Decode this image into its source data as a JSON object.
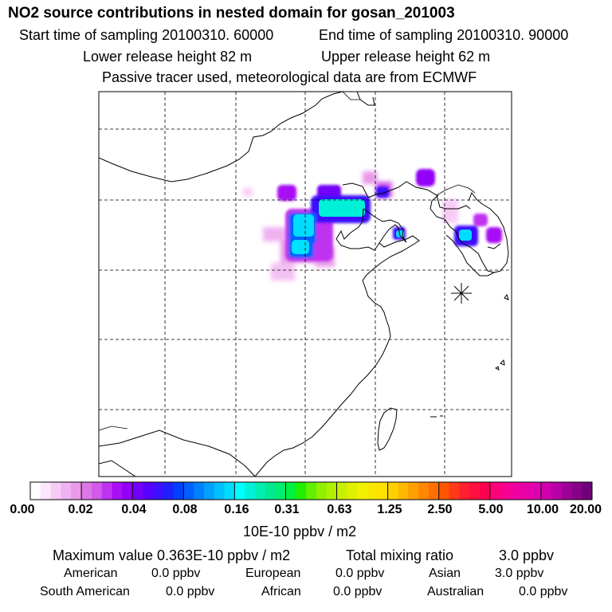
{
  "header": {
    "title": "NO2 source contributions in nested domain for gosan_201003",
    "start_time": "Start time of sampling 20100310. 60000",
    "end_time": "End time of sampling 20100310. 90000",
    "lower_height": "Lower release height   82 m",
    "upper_height": "Upper release height   62 m",
    "tracer_note": "Passive tracer used, meteorological data are from ECMWF"
  },
  "colorbar": {
    "labels": [
      "0.00",
      "0.02",
      "0.04",
      "0.08",
      "0.16",
      "0.31",
      "0.63",
      "1.25",
      "2.50",
      "5.00",
      "10.00",
      "20.00"
    ],
    "units": "10E-10 ppbv / m2",
    "colors": [
      [
        "#ffffff",
        "#fbe6fb",
        "#f6ccf6",
        "#f0b2f0",
        "#e89ae8"
      ],
      [
        "#dd77e8",
        "#d15ae8",
        "#bf33f0",
        "#a910f5",
        "#9400f7"
      ],
      [
        "#7300f7",
        "#5a00ff",
        "#3d10ff",
        "#2020ff",
        "#0040ff"
      ],
      [
        "#0060ff",
        "#0080ff",
        "#00a0ff",
        "#00c0ff",
        "#00dcff"
      ],
      [
        "#00ffff",
        "#00f0d8",
        "#00eeb0",
        "#00e890",
        "#00ee70"
      ],
      [
        "#00f040",
        "#20f000",
        "#60f000",
        "#90f000",
        "#b0f000"
      ],
      [
        "#c8f000",
        "#e0f000",
        "#f0f000",
        "#f8e800",
        "#ffe000"
      ],
      [
        "#ffd000",
        "#ffb800",
        "#ffa000",
        "#ff8800",
        "#ff7000"
      ],
      [
        "#ff5500",
        "#ff3a1a",
        "#ff2030",
        "#ff1040",
        "#ff0050"
      ],
      [
        "#ff0078",
        "#f80090",
        "#f000a0",
        "#e800a8",
        "#e000b0"
      ],
      [
        "#d000b0",
        "#b800a8",
        "#a00098",
        "#880088",
        "#700078"
      ]
    ]
  },
  "stats": {
    "maximum": "Maximum value  0.363E-10 ppbv / m2",
    "total": "Total mixing ratio",
    "total_value": "3.0 ppbv"
  },
  "regions": [
    {
      "name": "American",
      "value": "0.0 ppbv"
    },
    {
      "name": "European",
      "value": "0.0 ppbv"
    },
    {
      "name": "Asian",
      "value": "3.0 ppbv"
    },
    {
      "name": "South American",
      "value": "0.0 ppbv"
    },
    {
      "name": "African",
      "value": "0.0 ppbv"
    },
    {
      "name": "Australian",
      "value": "0.0 ppbv"
    }
  ],
  "map": {
    "receptor": "gosan",
    "receptor_marker": "star"
  }
}
